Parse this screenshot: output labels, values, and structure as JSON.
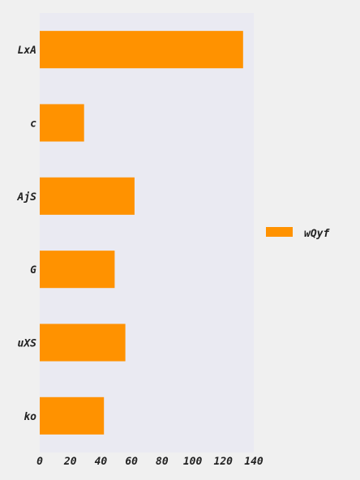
{
  "chart_data": {
    "type": "bar",
    "orientation": "horizontal",
    "categories": [
      "LxA",
      "c",
      "AjS",
      "G",
      "uXS",
      "ko"
    ],
    "series": [
      {
        "name": "wQyf",
        "values": [
          133,
          29,
          62,
          49,
          56,
          42
        ],
        "color": "#ff9200"
      }
    ],
    "xlim": [
      0,
      140
    ],
    "xticks": [
      0,
      20,
      40,
      60,
      80,
      100,
      120,
      140
    ],
    "title": "",
    "xlabel": "",
    "ylabel": "",
    "grid": false,
    "legend_position": "right",
    "plot_background": "#eaeaf2",
    "page_background": "#f0f0f0"
  }
}
